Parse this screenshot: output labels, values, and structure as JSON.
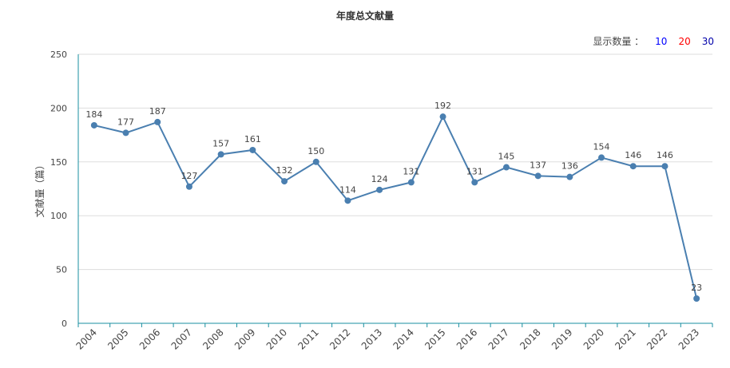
{
  "title": "年度总文献量",
  "display_count": {
    "label": "显示数量 ：",
    "options": [
      {
        "text": "10",
        "color": "#0000ff"
      },
      {
        "text": "20",
        "color": "#ff0000"
      },
      {
        "text": "30",
        "color": "#0000aa"
      }
    ]
  },
  "colors": {
    "line": "#4a7fb0",
    "axis": "#1a8fa0",
    "grid": "#dddddd"
  },
  "chart_data": {
    "type": "line",
    "title": "年度总文献量",
    "xlabel": "",
    "ylabel": "文献量（篇）",
    "ylim": [
      0,
      250
    ],
    "yticks": [
      0,
      50,
      100,
      150,
      200,
      250
    ],
    "grid": true,
    "categories": [
      "2004",
      "2005",
      "2006",
      "2007",
      "2008",
      "2009",
      "2010",
      "2011",
      "2012",
      "2013",
      "2014",
      "2015",
      "2016",
      "2017",
      "2018",
      "2019",
      "2020",
      "2021",
      "2022",
      "2023"
    ],
    "values": [
      184,
      177,
      187,
      127,
      157,
      161,
      132,
      150,
      114,
      124,
      131,
      192,
      131,
      145,
      137,
      136,
      154,
      146,
      146,
      23
    ]
  }
}
